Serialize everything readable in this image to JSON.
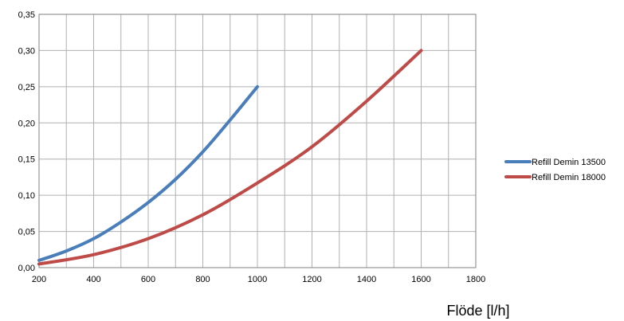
{
  "chart_data": {
    "type": "line",
    "title": "",
    "xlabel": "Flöde [l/h]",
    "ylabel": "",
    "xlim": [
      200,
      1800
    ],
    "ylim": [
      0,
      0.35
    ],
    "x_ticks": [
      "200",
      "400",
      "600",
      "800",
      "1000",
      "1200",
      "1400",
      "1600",
      "1800"
    ],
    "y_ticks": [
      "0,00",
      "0,05",
      "0,10",
      "0,15",
      "0,20",
      "0,25",
      "0,30",
      "0,35"
    ],
    "x_tick_step": 100,
    "grid": true,
    "legend_position": "right",
    "series": [
      {
        "name": "Refill Demin 13500",
        "color": "#4a7ebb",
        "points": [
          [
            200,
            0.01
          ],
          [
            300,
            0.023
          ],
          [
            400,
            0.04
          ],
          [
            500,
            0.063
          ],
          [
            600,
            0.09
          ],
          [
            700,
            0.122
          ],
          [
            800,
            0.16
          ],
          [
            900,
            0.204
          ],
          [
            1000,
            0.25
          ]
        ]
      },
      {
        "name": "Refill Demin 18000",
        "color": "#be4b48",
        "points": [
          [
            200,
            0.005
          ],
          [
            400,
            0.018
          ],
          [
            600,
            0.04
          ],
          [
            800,
            0.073
          ],
          [
            1000,
            0.117
          ],
          [
            1200,
            0.167
          ],
          [
            1400,
            0.23
          ],
          [
            1600,
            0.3
          ]
        ]
      }
    ]
  }
}
